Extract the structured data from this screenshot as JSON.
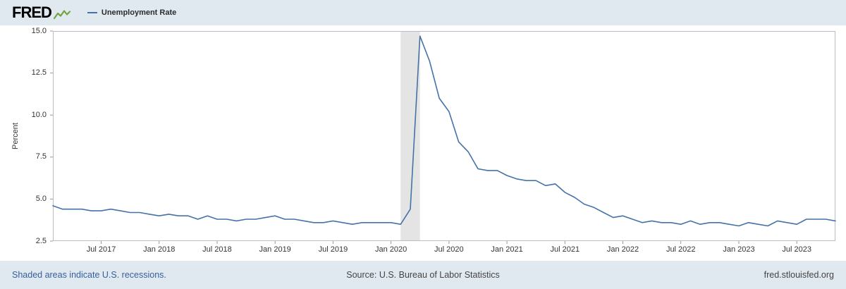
{
  "header": {
    "logo_text": "FRED",
    "legend": {
      "series_label": "Unemployment Rate"
    }
  },
  "chart_data": {
    "type": "line",
    "title": "Unemployment Rate",
    "xlabel": "",
    "ylabel": "Percent",
    "ylim": [
      2.5,
      15.0
    ],
    "grid": false,
    "legend_position": "top-left",
    "line_color": "#4572a7",
    "recession_color": "#e4e4e4",
    "y_ticks": [
      "2.5",
      "5.0",
      "7.5",
      "10.0",
      "12.5",
      "15.0"
    ],
    "x_tick_labels": [
      "Jul 2017",
      "Jan 2018",
      "Jul 2018",
      "Jan 2019",
      "Jul 2019",
      "Jan 2020",
      "Jul 2020",
      "Jan 2021",
      "Jul 2021",
      "Jan 2022",
      "Jul 2022",
      "Jan 2023",
      "Jul 2023"
    ],
    "x_tick_indices": [
      5,
      11,
      17,
      23,
      29,
      35,
      41,
      47,
      53,
      59,
      65,
      71,
      77
    ],
    "recession_bands": [
      {
        "start_month": "Feb 2020",
        "end_month": "Apr 2020",
        "start_index": 36,
        "end_index": 38
      }
    ],
    "x_months": [
      "Feb 2017",
      "Mar 2017",
      "Apr 2017",
      "May 2017",
      "Jun 2017",
      "Jul 2017",
      "Aug 2017",
      "Sep 2017",
      "Oct 2017",
      "Nov 2017",
      "Dec 2017",
      "Jan 2018",
      "Feb 2018",
      "Mar 2018",
      "Apr 2018",
      "May 2018",
      "Jun 2018",
      "Jul 2018",
      "Aug 2018",
      "Sep 2018",
      "Oct 2018",
      "Nov 2018",
      "Dec 2018",
      "Jan 2019",
      "Feb 2019",
      "Mar 2019",
      "Apr 2019",
      "May 2019",
      "Jun 2019",
      "Jul 2019",
      "Aug 2019",
      "Sep 2019",
      "Oct 2019",
      "Nov 2019",
      "Dec 2019",
      "Jan 2020",
      "Feb 2020",
      "Mar 2020",
      "Apr 2020",
      "May 2020",
      "Jun 2020",
      "Jul 2020",
      "Aug 2020",
      "Sep 2020",
      "Oct 2020",
      "Nov 2020",
      "Dec 2020",
      "Jan 2021",
      "Feb 2021",
      "Mar 2021",
      "Apr 2021",
      "May 2021",
      "Jun 2021",
      "Jul 2021",
      "Aug 2021",
      "Sep 2021",
      "Oct 2021",
      "Nov 2021",
      "Dec 2021",
      "Jan 2022",
      "Feb 2022",
      "Mar 2022",
      "Apr 2022",
      "May 2022",
      "Jun 2022",
      "Jul 2022",
      "Aug 2022",
      "Sep 2022",
      "Oct 2022",
      "Nov 2022",
      "Dec 2022",
      "Jan 2023",
      "Feb 2023",
      "Mar 2023",
      "Apr 2023",
      "May 2023",
      "Jun 2023",
      "Jul 2023",
      "Aug 2023",
      "Sep 2023",
      "Oct 2023",
      "Nov 2023"
    ],
    "values": [
      4.6,
      4.4,
      4.4,
      4.4,
      4.3,
      4.3,
      4.4,
      4.3,
      4.2,
      4.2,
      4.1,
      4.0,
      4.1,
      4.0,
      4.0,
      3.8,
      4.0,
      3.8,
      3.8,
      3.7,
      3.8,
      3.8,
      3.9,
      4.0,
      3.8,
      3.8,
      3.7,
      3.6,
      3.6,
      3.7,
      3.6,
      3.5,
      3.6,
      3.6,
      3.6,
      3.6,
      3.5,
      4.4,
      14.7,
      13.2,
      11.0,
      10.2,
      8.4,
      7.8,
      6.8,
      6.7,
      6.7,
      6.4,
      6.2,
      6.1,
      6.1,
      5.8,
      5.9,
      5.4,
      5.1,
      4.7,
      4.5,
      4.2,
      3.9,
      4.0,
      3.8,
      3.6,
      3.7,
      3.6,
      3.6,
      3.5,
      3.7,
      3.5,
      3.6,
      3.6,
      3.5,
      3.4,
      3.6,
      3.5,
      3.4,
      3.7,
      3.6,
      3.5,
      3.8,
      3.8,
      3.8,
      3.7
    ]
  },
  "footer": {
    "recession_note": "Shaded areas indicate U.S. recessions.",
    "source": "Source: U.S. Bureau of Labor Statistics",
    "site": "fred.stlouisfed.org",
    "link_color": "#36609b"
  }
}
